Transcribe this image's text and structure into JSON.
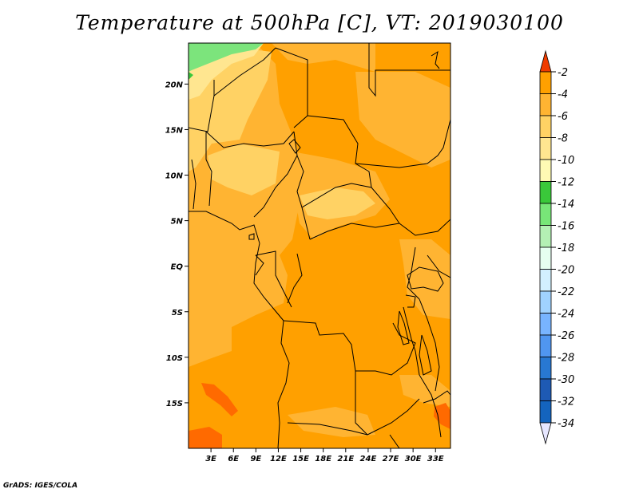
{
  "title": "Temperature at 500hPa [C], VT: 2019030100",
  "credit": "GrADS: IGES/COLA",
  "map": {
    "variable": "Temperature at 500hPa",
    "units": "C",
    "valid_time": "2019030100",
    "lon_range": [
      0,
      35
    ],
    "lat_range": [
      -20,
      24.5
    ],
    "lat_ticks": [
      {
        "value": 20,
        "label": "20N"
      },
      {
        "value": 15,
        "label": "15N"
      },
      {
        "value": 10,
        "label": "10N"
      },
      {
        "value": 5,
        "label": "5N"
      },
      {
        "value": 0,
        "label": "EQ"
      },
      {
        "value": -5,
        "label": "5S"
      },
      {
        "value": -10,
        "label": "10S"
      },
      {
        "value": -15,
        "label": "15S"
      }
    ],
    "lon_ticks": [
      {
        "value": 3,
        "label": "3E"
      },
      {
        "value": 6,
        "label": "6E"
      },
      {
        "value": 9,
        "label": "9E"
      },
      {
        "value": 12,
        "label": "12E"
      },
      {
        "value": 15,
        "label": "15E"
      },
      {
        "value": 18,
        "label": "18E"
      },
      {
        "value": 21,
        "label": "21E"
      },
      {
        "value": 24,
        "label": "24E"
      },
      {
        "value": 27,
        "label": "27E"
      },
      {
        "value": 30,
        "label": "30E"
      },
      {
        "value": 33,
        "label": "33E"
      }
    ]
  },
  "colorbar": {
    "levels": [
      "-2",
      "-4",
      "-6",
      "-8",
      "-10",
      "-12",
      "-14",
      "-16",
      "-18",
      "-20",
      "-22",
      "-24",
      "-26",
      "-28",
      "-30",
      "-32",
      "-34"
    ],
    "colors": [
      "#ff6a00",
      "#ffa000",
      "#ffb432",
      "#ffd264",
      "#ffe690",
      "#fffab4",
      "#3ac83a",
      "#78e678",
      "#b4f0b4",
      "#e6fff0",
      "#d2f0ff",
      "#a0d2ff",
      "#78b4ff",
      "#5096f0",
      "#2878d2",
      "#1e5ab4",
      "#1464be",
      "#0a0a78"
    ],
    "top_arrow_color": "#f03c00",
    "bottom_arrow_color": "#e6e6ff"
  },
  "field_colors": {
    "t4to2": "#ff6a00",
    "t6to4": "#ffa000",
    "t8to6": "#ffb432",
    "t10to8": "#ffd264",
    "t12to10": "#ffe690",
    "t14to12": "#7ce47c",
    "green_dark": "#3ac83a"
  }
}
